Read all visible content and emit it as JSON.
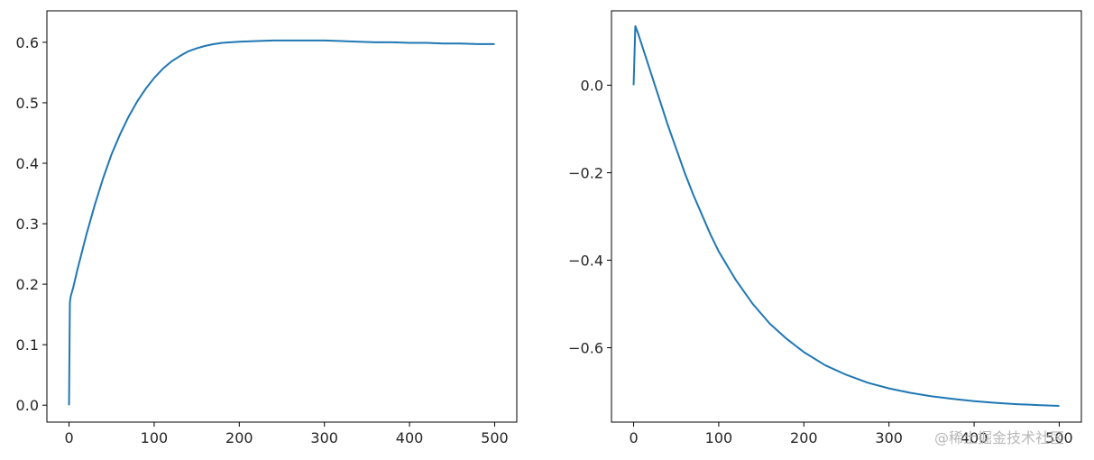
{
  "chart_data": [
    {
      "type": "line",
      "xlim": [
        -26,
        526
      ],
      "ylim": [
        -0.028,
        0.652
      ],
      "x_ticks": [
        0,
        100,
        200,
        300,
        400,
        500
      ],
      "x_tick_labels": [
        "0",
        "100",
        "200",
        "300",
        "400",
        "500"
      ],
      "y_ticks": [
        0.0,
        0.1,
        0.2,
        0.3,
        0.4,
        0.5,
        0.6
      ],
      "y_tick_labels": [
        "0.0",
        "0.1",
        "0.2",
        "0.3",
        "0.4",
        "0.5",
        "0.6"
      ],
      "grid": false,
      "series": [
        {
          "color": "#1f77b4",
          "x": [
            0,
            1,
            2,
            5,
            10,
            20,
            30,
            40,
            50,
            60,
            70,
            80,
            90,
            100,
            110,
            120,
            130,
            140,
            150,
            160,
            170,
            180,
            190,
            200,
            220,
            240,
            260,
            280,
            300,
            320,
            340,
            360,
            380,
            400,
            420,
            440,
            460,
            480,
            500
          ],
          "y": [
            0.0,
            0.17,
            0.18,
            0.195,
            0.225,
            0.28,
            0.33,
            0.375,
            0.415,
            0.448,
            0.477,
            0.502,
            0.523,
            0.541,
            0.556,
            0.568,
            0.577,
            0.585,
            0.59,
            0.594,
            0.597,
            0.599,
            0.6,
            0.601,
            0.602,
            0.603,
            0.603,
            0.603,
            0.603,
            0.602,
            0.601,
            0.6,
            0.6,
            0.599,
            0.599,
            0.598,
            0.598,
            0.597,
            0.597
          ]
        }
      ]
    },
    {
      "type": "line",
      "xlim": [
        -26,
        526
      ],
      "ylim": [
        -0.77,
        0.17
      ],
      "x_ticks": [
        0,
        100,
        200,
        300,
        400,
        500
      ],
      "x_tick_labels": [
        "0",
        "100",
        "200",
        "300",
        "400",
        "500"
      ],
      "y_ticks": [
        0.0,
        -0.2,
        -0.4,
        -0.6
      ],
      "y_tick_labels": [
        "0.0",
        "−0.2",
        "−0.4",
        "−0.6"
      ],
      "grid": false,
      "series": [
        {
          "color": "#1f77b4",
          "x": [
            0,
            2,
            5,
            10,
            20,
            30,
            40,
            50,
            60,
            70,
            80,
            90,
            100,
            120,
            140,
            160,
            180,
            200,
            225,
            250,
            275,
            300,
            325,
            350,
            375,
            400,
            425,
            450,
            475,
            500
          ],
          "y": [
            0.0,
            0.135,
            0.12,
            0.09,
            0.03,
            -0.03,
            -0.09,
            -0.145,
            -0.2,
            -0.25,
            -0.295,
            -0.34,
            -0.38,
            -0.445,
            -0.5,
            -0.545,
            -0.58,
            -0.61,
            -0.64,
            -0.662,
            -0.68,
            -0.693,
            -0.703,
            -0.711,
            -0.717,
            -0.722,
            -0.726,
            -0.729,
            -0.731,
            -0.733
          ]
        }
      ]
    }
  ],
  "watermark": "@稀土掘金技术社区"
}
